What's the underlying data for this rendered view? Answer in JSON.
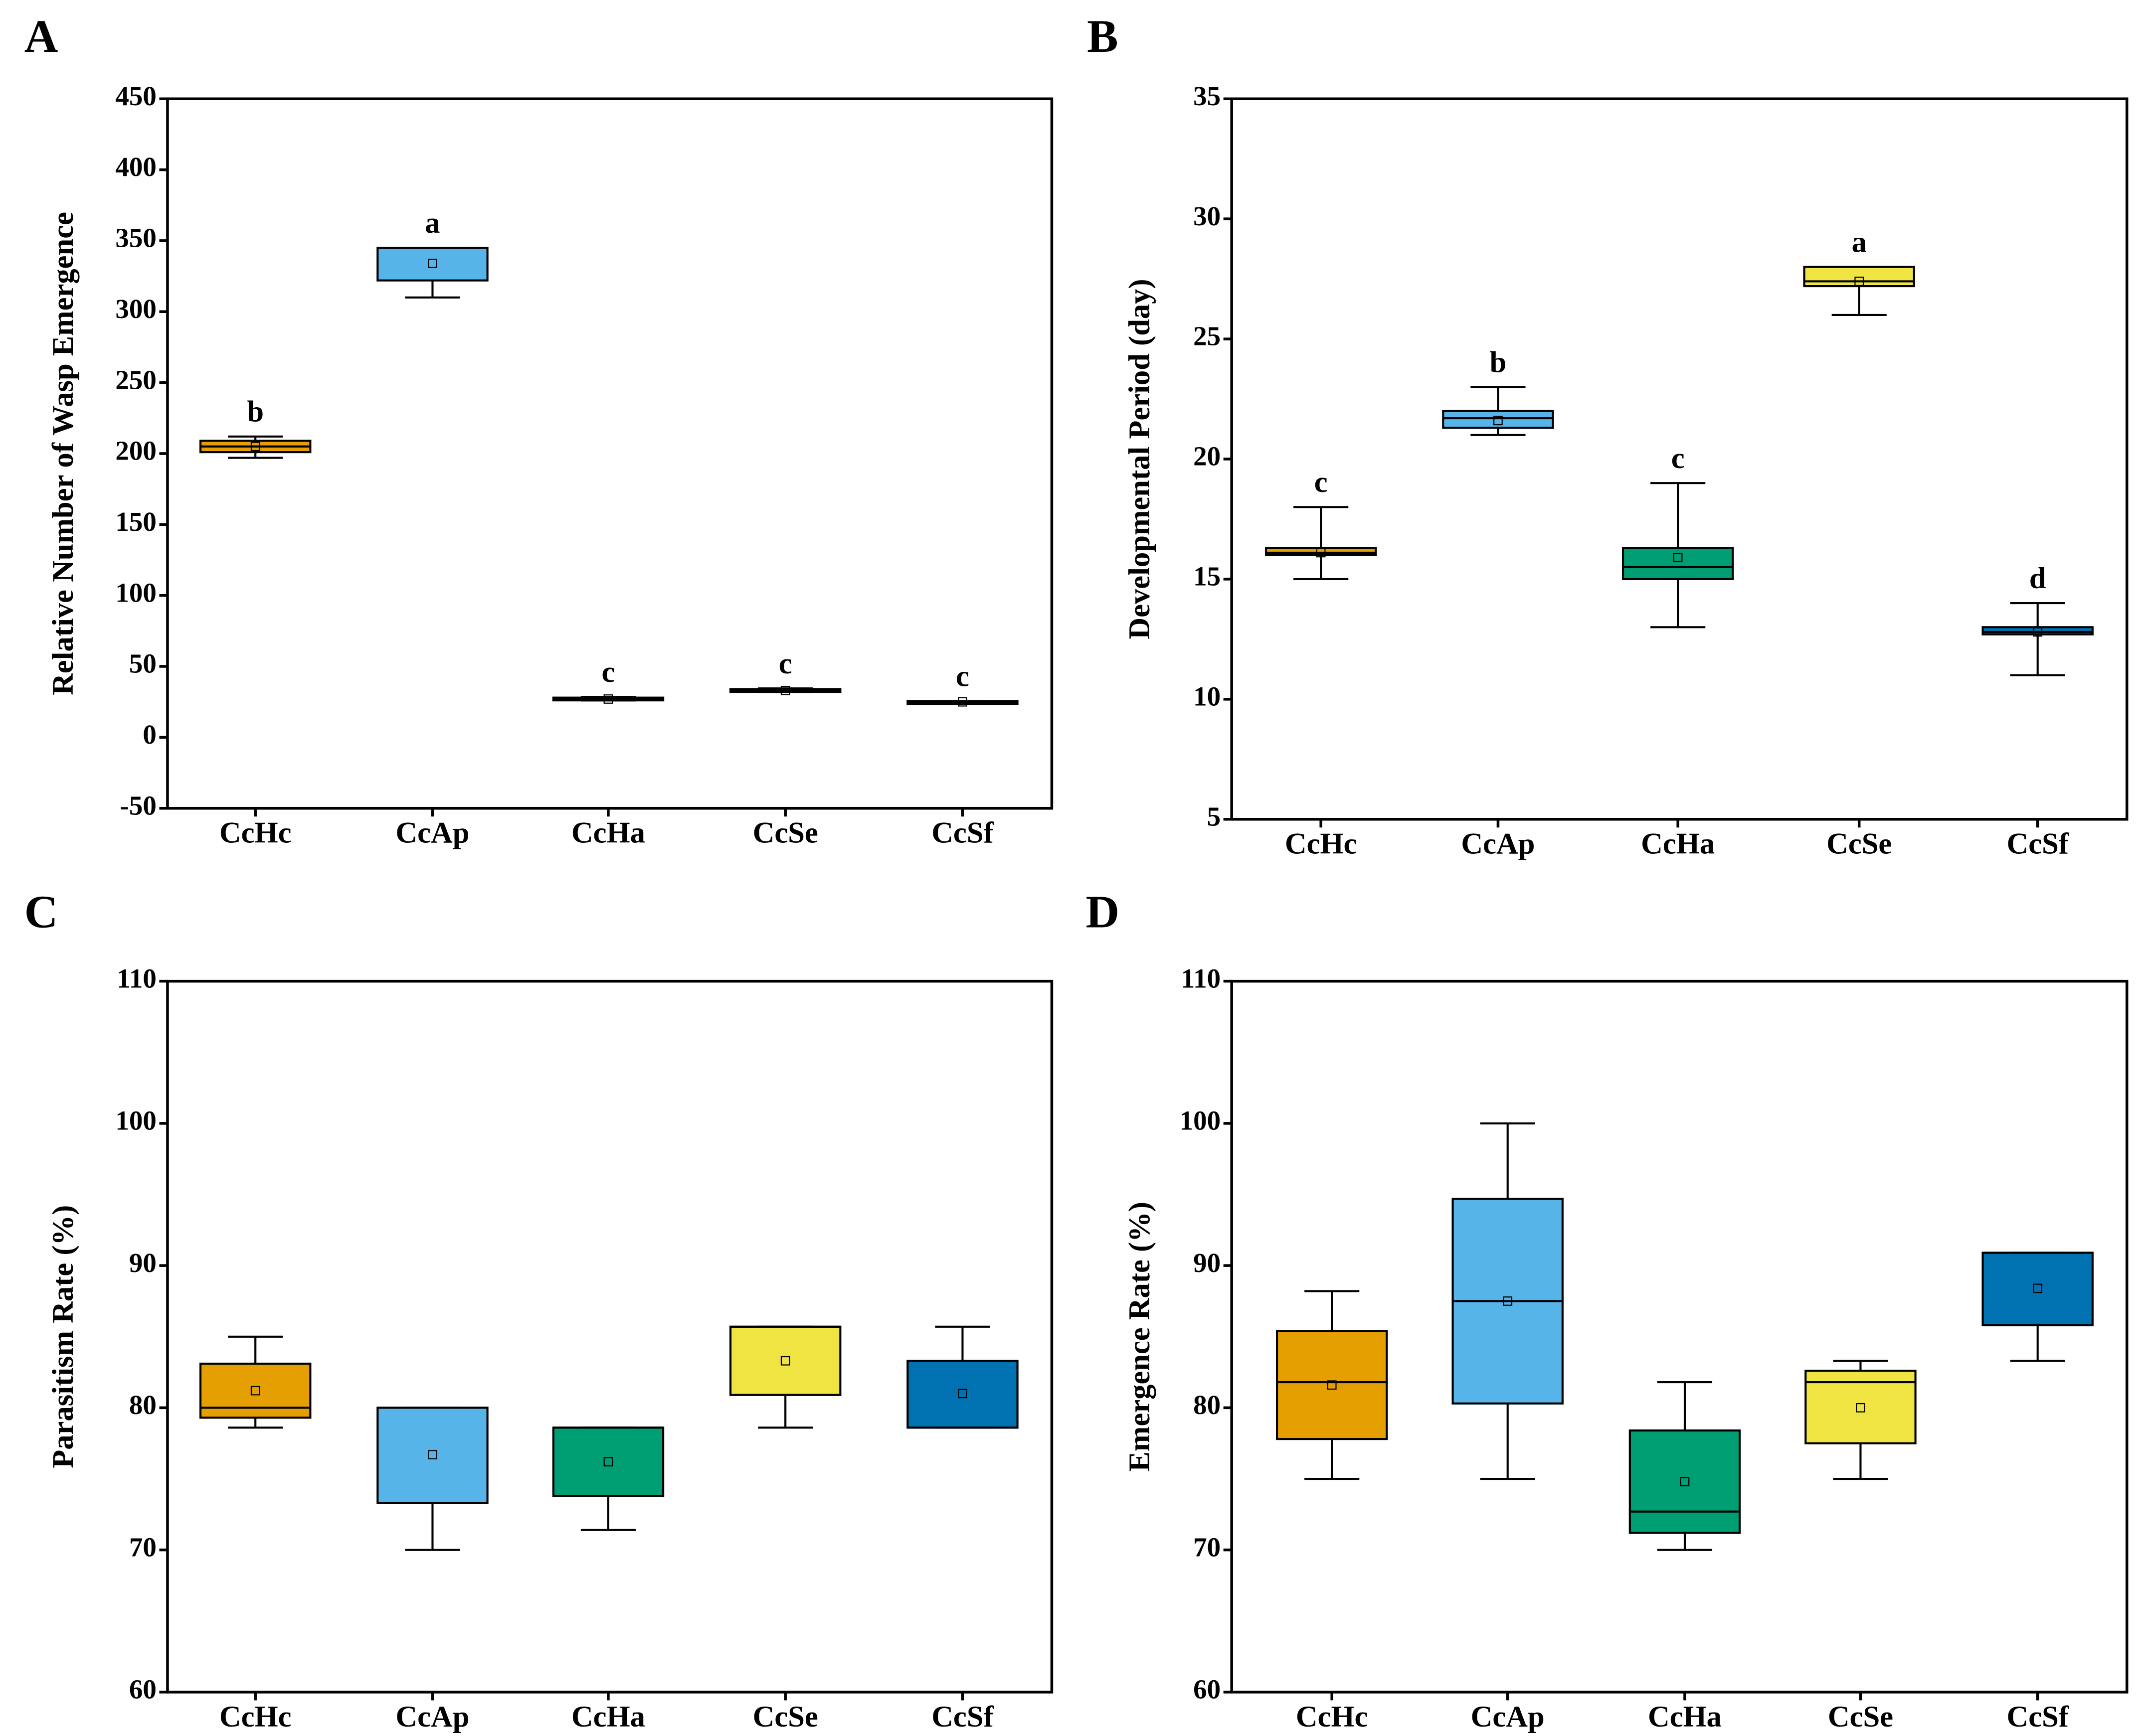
{
  "colors": {
    "CcHc": "#E69F00",
    "CcAp": "#56B4E9",
    "CcHa": "#009E73",
    "CcSe": "#F0E442",
    "CcSf": "#0072B2"
  },
  "chart_data": [
    {
      "panel": "A",
      "type": "box",
      "ylabel": "Relative Number of Wasp Emergence",
      "ylim": [
        -50,
        450
      ],
      "yticks": [
        -50,
        0,
        50,
        100,
        150,
        200,
        250,
        300,
        350,
        400,
        450
      ],
      "categories": [
        "CcHc",
        "CcAp",
        "CcHa",
        "CcSe",
        "CcSf"
      ],
      "boxes": [
        {
          "min": 197,
          "q1": 201,
          "median": 205,
          "q3": 209,
          "max": 212,
          "mean": 205,
          "letter": "b"
        },
        {
          "min": 310,
          "q1": 322,
          "median": 345,
          "q3": 345,
          "max": 345,
          "mean": 334,
          "letter": "a"
        },
        {
          "min": 26,
          "q1": 26.5,
          "median": 27,
          "q3": 28,
          "max": 28.5,
          "mean": 27,
          "letter": "c"
        },
        {
          "min": 32,
          "q1": 32.5,
          "median": 33,
          "q3": 34,
          "max": 34.5,
          "mean": 33,
          "letter": "c"
        },
        {
          "min": 24.5,
          "q1": 24.5,
          "median": 25,
          "q3": 25.5,
          "max": 25.5,
          "mean": 25,
          "letter": "c"
        }
      ]
    },
    {
      "panel": "B",
      "type": "box",
      "ylabel": "Developmental Period (day)",
      "ylim": [
        5,
        35
      ],
      "yticks": [
        5,
        10,
        15,
        20,
        25,
        30,
        35
      ],
      "categories": [
        "CcHc",
        "CcAp",
        "CcHa",
        "CcSe",
        "CcSf"
      ],
      "boxes": [
        {
          "min": 15,
          "q1": 16,
          "median": 16.1,
          "q3": 16.3,
          "max": 18,
          "mean": 16.1,
          "letter": "c"
        },
        {
          "min": 21,
          "q1": 21.3,
          "median": 21.7,
          "q3": 22,
          "max": 23,
          "mean": 21.6,
          "letter": "b"
        },
        {
          "min": 13,
          "q1": 15,
          "median": 15.5,
          "q3": 16.3,
          "max": 19,
          "mean": 15.9,
          "letter": "c"
        },
        {
          "min": 26,
          "q1": 27.2,
          "median": 27.4,
          "q3": 28,
          "max": 28,
          "mean": 27.4,
          "letter": "a"
        },
        {
          "min": 11,
          "q1": 12.7,
          "median": 12.8,
          "q3": 13,
          "max": 14,
          "mean": 12.8,
          "letter": "d"
        }
      ]
    },
    {
      "panel": "C",
      "type": "box",
      "ylabel": "Parasitism Rate (%)",
      "ylim": [
        60,
        110
      ],
      "yticks": [
        60,
        70,
        80,
        90,
        100,
        110
      ],
      "categories": [
        "CcHc",
        "CcAp",
        "CcHa",
        "CcSe",
        "CcSf"
      ],
      "boxes": [
        {
          "min": 78.6,
          "q1": 79.3,
          "median": 80,
          "q3": 83.1,
          "max": 85,
          "mean": 81.2,
          "letter": ""
        },
        {
          "min": 70,
          "q1": 73.3,
          "median": 80,
          "q3": 80,
          "max": 80,
          "mean": 76.7,
          "letter": ""
        },
        {
          "min": 71.4,
          "q1": 73.8,
          "median": 78.6,
          "q3": 78.6,
          "max": 78.6,
          "mean": 76.2,
          "letter": ""
        },
        {
          "min": 78.6,
          "q1": 80.9,
          "median": 85.7,
          "q3": 85.7,
          "max": 85.7,
          "mean": 83.3,
          "letter": ""
        },
        {
          "min": 78.6,
          "q1": 78.6,
          "median": 78.6,
          "q3": 83.3,
          "max": 85.7,
          "mean": 81,
          "letter": ""
        }
      ]
    },
    {
      "panel": "D",
      "type": "box",
      "ylabel": "Emergence Rate (%)",
      "ylim": [
        60,
        110
      ],
      "yticks": [
        60,
        70,
        80,
        90,
        100,
        110
      ],
      "categories": [
        "CcHc",
        "CcAp",
        "CcHa",
        "CcSe",
        "CcSf"
      ],
      "boxes": [
        {
          "min": 75,
          "q1": 77.8,
          "median": 81.8,
          "q3": 85.4,
          "max": 88.2,
          "mean": 81.6,
          "letter": ""
        },
        {
          "min": 75,
          "q1": 80.3,
          "median": 87.5,
          "q3": 94.7,
          "max": 100,
          "mean": 87.5,
          "letter": ""
        },
        {
          "min": 70,
          "q1": 71.2,
          "median": 72.7,
          "q3": 78.4,
          "max": 81.8,
          "mean": 74.8,
          "letter": ""
        },
        {
          "min": 75,
          "q1": 77.5,
          "median": 81.8,
          "q3": 82.6,
          "max": 83.3,
          "mean": 80,
          "letter": ""
        },
        {
          "min": 83.3,
          "q1": 85.8,
          "median": 90.9,
          "q3": 90.9,
          "max": 90.9,
          "mean": 88.4,
          "letter": ""
        }
      ]
    }
  ]
}
